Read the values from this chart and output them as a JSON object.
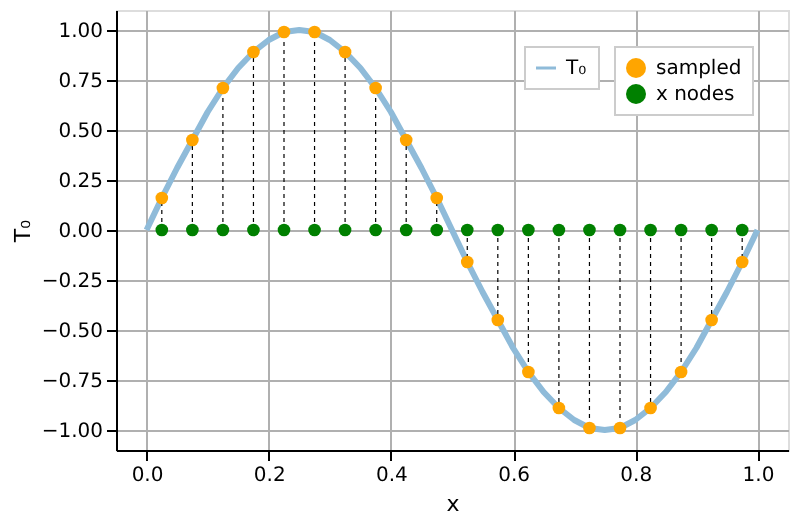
{
  "chart_data": {
    "type": "line",
    "xlabel": "x",
    "ylabel": "T₀",
    "xlim": [
      -0.05,
      1.05
    ],
    "ylim": [
      -1.1,
      1.1
    ],
    "xticks": [
      {
        "value": 0,
        "label": "0.0"
      },
      {
        "value": 0.2,
        "label": "0.2"
      },
      {
        "value": 0.4,
        "label": "0.4"
      },
      {
        "value": 0.6,
        "label": "0.6"
      },
      {
        "value": 0.8,
        "label": "0.8"
      },
      {
        "value": 1,
        "label": "1.0"
      }
    ],
    "yticks": [
      {
        "value": -1,
        "label": "−1.00"
      },
      {
        "value": -0.75,
        "label": "−0.75"
      },
      {
        "value": -0.5,
        "label": "−0.50"
      },
      {
        "value": -0.25,
        "label": "−0.25"
      },
      {
        "value": 0,
        "label": "0.00"
      },
      {
        "value": 0.25,
        "label": "0.25"
      },
      {
        "value": 0.5,
        "label": "0.50"
      },
      {
        "value": 0.75,
        "label": "0.75"
      },
      {
        "value": 1,
        "label": "1.00"
      }
    ],
    "grid": true,
    "legend": "top right",
    "series": [
      {
        "name": "T₀",
        "marker": "none",
        "color": "#8fbbd9",
        "x": [
          0,
          0.025,
          0.05,
          0.075,
          0.1,
          0.125,
          0.15,
          0.175,
          0.2,
          0.225,
          0.25,
          0.275,
          0.3,
          0.325,
          0.35,
          0.375,
          0.4,
          0.425,
          0.45,
          0.475,
          0.5,
          0.525,
          0.55,
          0.575,
          0.6,
          0.625,
          0.65,
          0.675,
          0.7,
          0.725,
          0.75,
          0.775,
          0.8,
          0.825,
          0.85,
          0.875,
          0.9,
          0.925,
          0.95,
          0.975,
          1
        ],
        "values": [
          0,
          0.16,
          0.31,
          0.45,
          0.59,
          0.71,
          0.81,
          0.89,
          0.95,
          0.99,
          1,
          0.99,
          0.95,
          0.89,
          0.81,
          0.71,
          0.59,
          0.45,
          0.31,
          0.16,
          0,
          -0.16,
          -0.31,
          -0.45,
          -0.59,
          -0.71,
          -0.81,
          -0.89,
          -0.95,
          -0.99,
          -1,
          -0.99,
          -0.95,
          -0.89,
          -0.81,
          -0.71,
          -0.59,
          -0.45,
          -0.31,
          -0.16,
          0
        ]
      },
      {
        "name": "sampled",
        "type": "lollipop",
        "line_style": "dotted",
        "marker": "circle",
        "color": "#ffa500",
        "x": [
          0.025,
          0.075,
          0.125,
          0.175,
          0.225,
          0.275,
          0.325,
          0.375,
          0.425,
          0.475,
          0.525,
          0.575,
          0.625,
          0.675,
          0.725,
          0.775,
          0.825,
          0.875,
          0.925,
          0.975
        ],
        "values": [
          0.16,
          0.45,
          0.71,
          0.89,
          0.99,
          0.99,
          0.89,
          0.71,
          0.45,
          0.16,
          -0.16,
          -0.45,
          -0.71,
          -0.89,
          -0.99,
          -0.99,
          -0.89,
          -0.71,
          -0.45,
          -0.16
        ]
      },
      {
        "name": "x nodes",
        "type": "scatter",
        "marker": "circle",
        "color": "#008000",
        "x": [
          0.025,
          0.075,
          0.125,
          0.175,
          0.225,
          0.275,
          0.325,
          0.375,
          0.425,
          0.475,
          0.525,
          0.575,
          0.625,
          0.675,
          0.725,
          0.775,
          0.825,
          0.875,
          0.925,
          0.975
        ],
        "values": [
          0,
          0,
          0,
          0,
          0,
          0,
          0,
          0,
          0,
          0,
          0,
          0,
          0,
          0,
          0,
          0,
          0,
          0,
          0,
          0
        ]
      }
    ]
  }
}
